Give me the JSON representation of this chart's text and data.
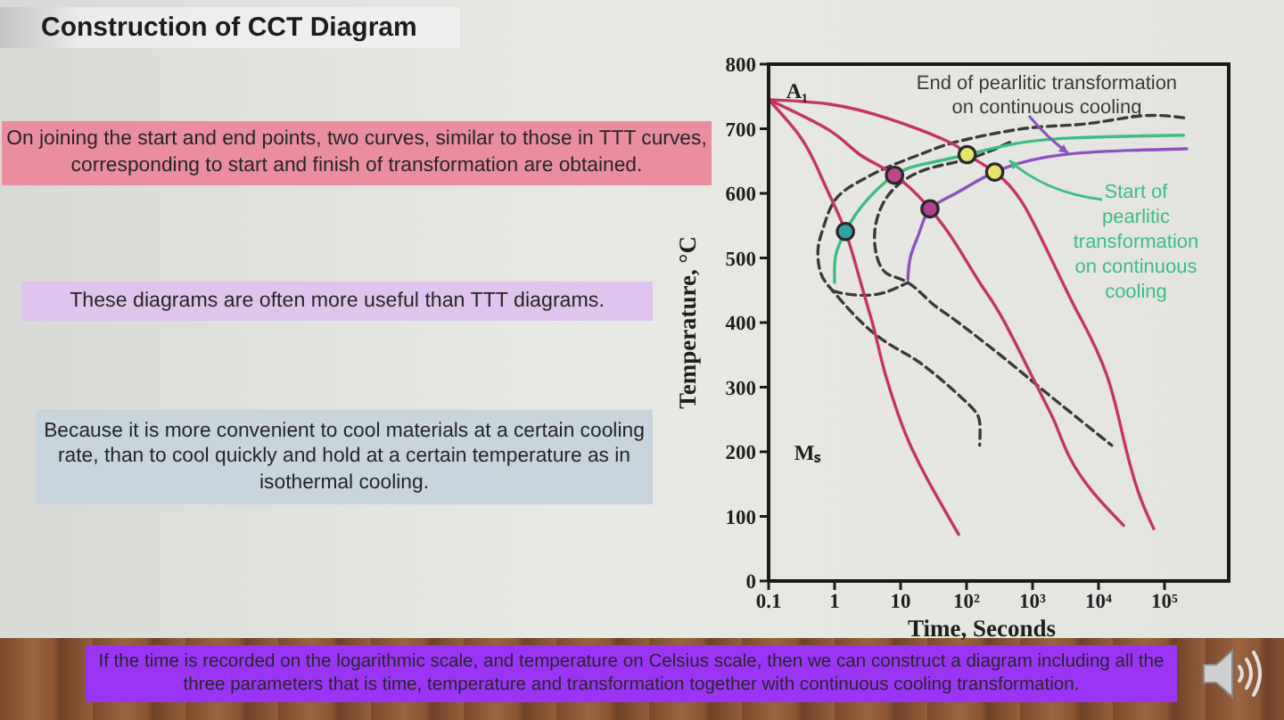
{
  "chart_data": {
    "type": "line",
    "title": "Construction of CCT Diagram",
    "xlabel": "Time, Seconds",
    "ylabel": "Temperature, °C",
    "log": "x",
    "xlim": [
      0.1,
      1000000
    ],
    "xticks": [
      0.1,
      1,
      10,
      {
        "value": 100,
        "label": "10²"
      },
      {
        "value": 1000,
        "label": "10³"
      },
      {
        "value": 10000,
        "label": "10⁴"
      },
      {
        "value": 100000,
        "label": "10⁵"
      }
    ],
    "ylim": [
      0,
      800
    ],
    "yticks": [
      0,
      100,
      200,
      300,
      400,
      500,
      600,
      700,
      800
    ],
    "series": [
      {
        "color": "#3a3a3a",
        "line_style": "dashed",
        "x": [
          195000,
          45100,
          6860,
          1042,
          158,
          45,
          19.5,
          6.86,
          2.41,
          1.04,
          0.69,
          0.56,
          0.62,
          0.94,
          2.41,
          6.86,
          19.5,
          68.6,
          129,
          158,
          158
        ],
        "values": [
          717,
          720,
          708,
          702,
          688,
          674,
          660,
          642,
          619,
          591,
          550,
          513,
          476,
          449,
          403,
          366,
          338,
          292,
          265,
          246,
          210
        ]
      },
      {
        "color": "#3a3a3a",
        "line_style": "dashed",
        "x": [
          451,
          104,
          24.1,
          8.46,
          5.01,
          4.06,
          4.33,
          6.18,
          12.9,
          29.7,
          68.6,
          451,
          1585,
          15850
        ],
        "values": [
          679,
          653,
          637,
          610,
          577,
          541,
          504,
          476,
          462,
          430,
          403,
          338,
          292,
          210
        ]
      },
      {
        "color": "#3a3a3a",
        "line_style": "dashed",
        "x": [
          0.94,
          1.59,
          4.51,
          12.9
        ],
        "values": [
          449,
          444,
          444,
          462
        ]
      },
      {
        "color": "#c43660",
        "x": [
          0.1,
          0.3,
          0.56,
          0.85,
          1.46,
          2.41,
          3.66,
          4.52,
          5.56,
          7.6,
          12.9,
          29.7,
          76
        ],
        "values": [
          745,
          688,
          637,
          596,
          541,
          467,
          403,
          366,
          329,
          283,
          219,
          145,
          72
        ]
      },
      {
        "color": "#c43660",
        "x": [
          0.1,
          0.85,
          2.41,
          8.1,
          27.9,
          68.6,
          158,
          366,
          1159,
          2168,
          3660,
          8450,
          24000
        ],
        "values": [
          745,
          697,
          660,
          628,
          576,
          522,
          462,
          403,
          302,
          246,
          191,
          136,
          86
        ]
      },
      {
        "color": "#c43660",
        "x": [
          0.1,
          0.85,
          6.86,
          55.6,
          102,
          267,
          686,
          1640,
          3630,
          5600,
          13200,
          24100,
          40600,
          68500
        ],
        "values": [
          745,
          738,
          715,
          679,
          660,
          633,
          587,
          513,
          440,
          403,
          320,
          219,
          136,
          81
        ]
      },
      {
        "name": "Start of pearlitic transformation on continuous cooling",
        "color": "#3dbd80",
        "x": [
          1.0,
          1.04,
          1.46,
          2.67,
          8.1,
          24.1,
          102,
          556,
          4520,
          195000
        ],
        "values": [
          462,
          504,
          541,
          582,
          628,
          646,
          660,
          677,
          686,
          690
        ]
      },
      {
        "name": "End of pearlitic transformation on continuous cooling",
        "color": "#8c52c0",
        "x": [
          12.9,
          14.3,
          19.5,
          27.9,
          68.6,
          267,
          1585,
          12900,
          217000
        ],
        "values": [
          467,
          504,
          541,
          576,
          600,
          633,
          656,
          665,
          669
        ]
      },
      {
        "type": "scatter",
        "marker": "circle",
        "x": [
          1.46,
          8.1,
          27.9,
          102,
          267
        ],
        "values": [
          541,
          628,
          576,
          660,
          633
        ],
        "colors": [
          "#2fa3a3",
          "#c2448f",
          "#b04290",
          "#e6e36a",
          "#e6e36a"
        ]
      }
    ],
    "annotations": [
      "On joining the start and end points, two curves, similar to those in TTT curves, corresponding to start and finish of transformation are obtained.",
      "These diagrams are often more useful than TTT diagrams.",
      "Because it is more convenient to cool materials at a certain cooling rate, than to cool quickly and hold at a certain temperature as in isothermal cooling.",
      "If the time is recorded on the logarithmic scale, and temperature on Celsius scale, then we can construct a diagram including all the three parameters that is time, temperature and transformation together with continuous cooling transformation.",
      "A₁",
      "Mₛ"
    ]
  }
}
